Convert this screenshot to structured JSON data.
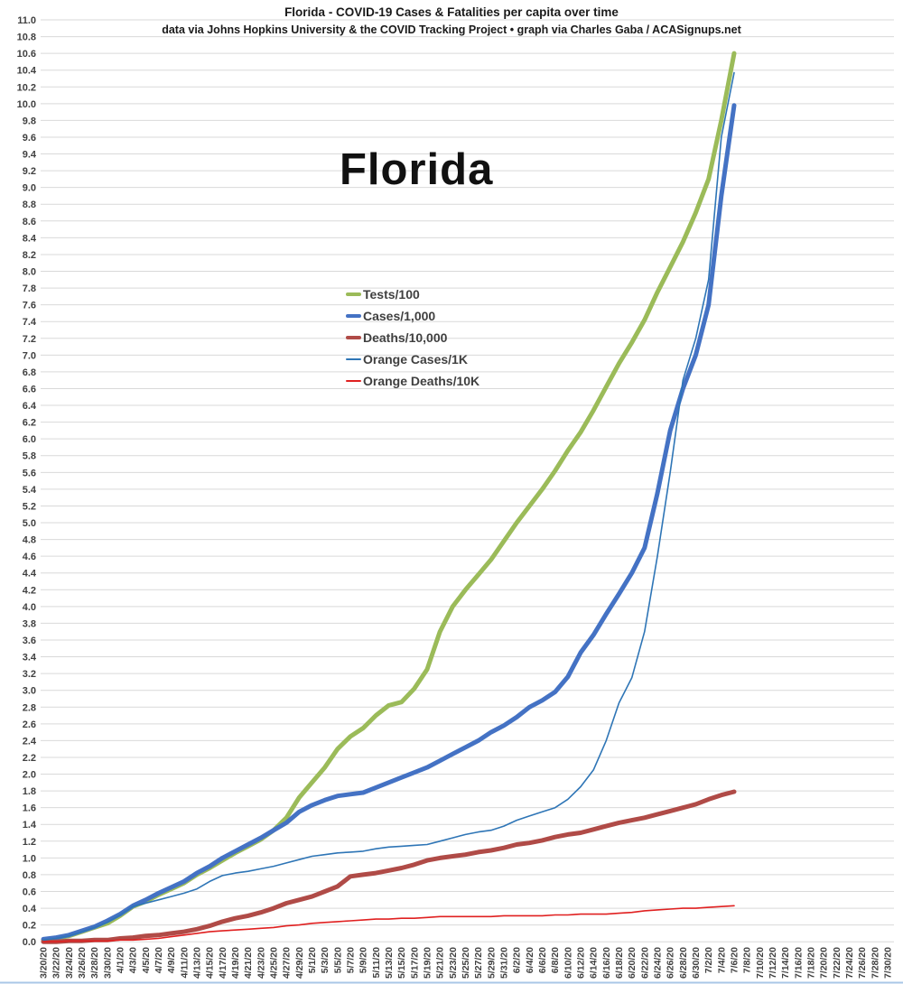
{
  "header": {
    "title": "Florida - COVID-19 Cases & Fatalities per capita over time",
    "subtitle": "data via Johns Hopkins University & the COVID Tracking Project • graph via Charles Gaba / ACASignups.net"
  },
  "watermark": "Florida",
  "legend": [
    {
      "label": "Tests/100",
      "color": "#9BBB59",
      "thick": true
    },
    {
      "label": "Cases/1,000",
      "color": "#4472C4",
      "thick": true
    },
    {
      "label": "Deaths/10,000",
      "color": "#B04B47",
      "thick": true
    },
    {
      "label": "Orange Cases/1K",
      "color": "#2E75B6",
      "thick": false
    },
    {
      "label": "Orange Deaths/10K",
      "color": "#E02020",
      "thick": false
    }
  ],
  "colors": {
    "grid": "#D9D9D9",
    "axis_text": "#404040",
    "bottom_border": "#A9C7E7",
    "background": "#FFFFFF"
  },
  "chart_data": {
    "type": "line",
    "title": "Florida - COVID-19 Cases & Fatalities per capita over time",
    "xlabel": "",
    "ylabel": "",
    "ylim": [
      0,
      11
    ],
    "y_tick_step": 0.2,
    "grid": "horizontal",
    "legend_position": "inside-upper-left",
    "x_labels": [
      "3/20/20",
      "3/22/20",
      "3/24/20",
      "3/26/20",
      "3/28/20",
      "3/30/20",
      "4/1/20",
      "4/3/20",
      "4/5/20",
      "4/7/20",
      "4/9/20",
      "4/11/20",
      "4/13/20",
      "4/15/20",
      "4/17/20",
      "4/19/20",
      "4/21/20",
      "4/23/20",
      "4/25/20",
      "4/27/20",
      "4/29/20",
      "5/1/20",
      "5/3/20",
      "5/5/20",
      "5/7/20",
      "5/9/20",
      "5/11/20",
      "5/13/20",
      "5/15/20",
      "5/17/20",
      "5/19/20",
      "5/21/20",
      "5/23/20",
      "5/25/20",
      "5/27/20",
      "5/29/20",
      "5/31/20",
      "6/2/20",
      "6/4/20",
      "6/6/20",
      "6/8/20",
      "6/10/20",
      "6/12/20",
      "6/14/20",
      "6/16/20",
      "6/18/20",
      "6/20/20",
      "6/22/20",
      "6/24/20",
      "6/26/20",
      "6/28/20",
      "6/30/20",
      "7/2/20",
      "7/4/20",
      "7/6/20",
      "7/8/20",
      "7/10/20",
      "7/12/20",
      "7/14/20",
      "7/16/20",
      "7/18/20",
      "7/20/20",
      "7/22/20",
      "7/24/20",
      "7/26/20",
      "7/28/20",
      "7/30/20"
    ],
    "data_x_labels_span": 55,
    "series": [
      {
        "name": "Tests/100",
        "color": "#9BBB59",
        "width": 5,
        "values": [
          0.02,
          0.04,
          0.07,
          0.12,
          0.17,
          0.22,
          0.31,
          0.42,
          0.48,
          0.56,
          0.63,
          0.7,
          0.8,
          0.88,
          0.97,
          1.06,
          1.14,
          1.22,
          1.33,
          1.48,
          1.72,
          1.9,
          2.08,
          2.3,
          2.45,
          2.55,
          2.7,
          2.82,
          2.86,
          3.02,
          3.25,
          3.7,
          4.0,
          4.2,
          4.38,
          4.56,
          4.78,
          5.0,
          5.2,
          5.4,
          5.62,
          5.86,
          6.08,
          6.34,
          6.62,
          6.9,
          7.15,
          7.42,
          7.75,
          8.05,
          8.35,
          8.7,
          9.1,
          9.8,
          10.6
        ]
      },
      {
        "name": "Cases/1,000",
        "color": "#4472C4",
        "width": 5,
        "values": [
          0.03,
          0.05,
          0.08,
          0.13,
          0.18,
          0.25,
          0.33,
          0.43,
          0.5,
          0.58,
          0.65,
          0.72,
          0.82,
          0.9,
          1.0,
          1.08,
          1.16,
          1.24,
          1.33,
          1.42,
          1.55,
          1.63,
          1.69,
          1.74,
          1.76,
          1.78,
          1.84,
          1.9,
          1.96,
          2.02,
          2.08,
          2.16,
          2.24,
          2.32,
          2.4,
          2.5,
          2.58,
          2.68,
          2.8,
          2.88,
          2.98,
          3.16,
          3.45,
          3.66,
          3.91,
          4.15,
          4.4,
          4.7,
          5.35,
          6.1,
          6.6,
          7.0,
          7.6,
          8.9,
          9.98
        ]
      },
      {
        "name": "Deaths/10,000",
        "color": "#B04B47",
        "width": 5,
        "values": [
          0.0,
          0.0,
          0.01,
          0.01,
          0.02,
          0.02,
          0.04,
          0.05,
          0.07,
          0.08,
          0.1,
          0.12,
          0.15,
          0.19,
          0.24,
          0.28,
          0.31,
          0.35,
          0.4,
          0.46,
          0.5,
          0.54,
          0.6,
          0.66,
          0.78,
          0.8,
          0.82,
          0.85,
          0.88,
          0.92,
          0.97,
          1.0,
          1.02,
          1.04,
          1.07,
          1.09,
          1.12,
          1.16,
          1.18,
          1.21,
          1.25,
          1.28,
          1.3,
          1.34,
          1.38,
          1.42,
          1.45,
          1.48,
          1.52,
          1.56,
          1.6,
          1.64,
          1.7,
          1.75,
          1.79
        ]
      },
      {
        "name": "Orange Cases/1K",
        "color": "#2E75B6",
        "width": 1.6,
        "values": [
          0.02,
          0.04,
          0.07,
          0.12,
          0.17,
          0.23,
          0.32,
          0.42,
          0.46,
          0.5,
          0.54,
          0.58,
          0.63,
          0.72,
          0.79,
          0.82,
          0.84,
          0.87,
          0.9,
          0.94,
          0.98,
          1.02,
          1.04,
          1.06,
          1.07,
          1.08,
          1.11,
          1.13,
          1.14,
          1.15,
          1.16,
          1.2,
          1.24,
          1.28,
          1.31,
          1.33,
          1.38,
          1.45,
          1.5,
          1.55,
          1.6,
          1.7,
          1.85,
          2.05,
          2.4,
          2.85,
          3.15,
          3.7,
          4.6,
          5.6,
          6.7,
          7.2,
          7.9,
          9.6,
          10.37
        ]
      },
      {
        "name": "Orange Deaths/10K",
        "color": "#E02020",
        "width": 1.6,
        "values": [
          0.0,
          0.0,
          0.01,
          0.01,
          0.01,
          0.01,
          0.02,
          0.02,
          0.03,
          0.04,
          0.06,
          0.08,
          0.1,
          0.12,
          0.13,
          0.14,
          0.15,
          0.16,
          0.17,
          0.19,
          0.2,
          0.22,
          0.23,
          0.24,
          0.25,
          0.26,
          0.27,
          0.27,
          0.28,
          0.28,
          0.29,
          0.3,
          0.3,
          0.3,
          0.3,
          0.3,
          0.31,
          0.31,
          0.31,
          0.31,
          0.32,
          0.32,
          0.33,
          0.33,
          0.33,
          0.34,
          0.35,
          0.37,
          0.38,
          0.39,
          0.4,
          0.4,
          0.41,
          0.42,
          0.43
        ]
      }
    ]
  }
}
